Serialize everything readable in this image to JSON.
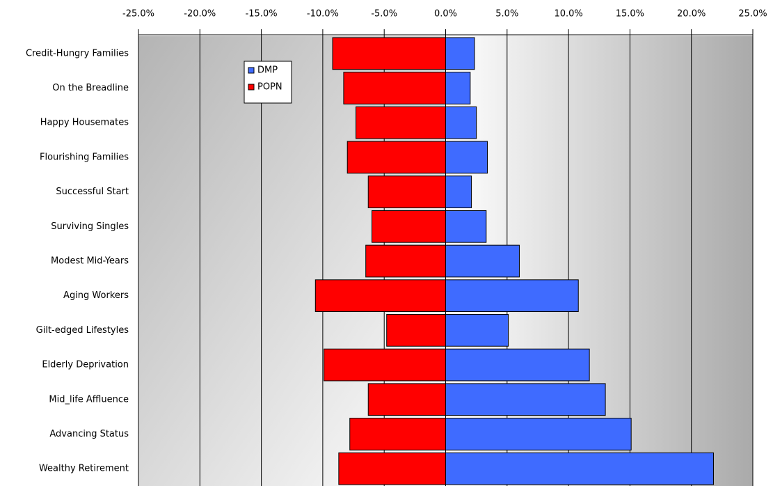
{
  "chart_data": {
    "type": "bar",
    "orientation": "horizontal",
    "barmode": "overlay",
    "categories": [
      "Credit-Hungry Families",
      "On the Breadline",
      "Happy Housemates",
      "Flourishing Families",
      "Successful Start",
      "Surviving Singles",
      "Modest Mid-Years",
      "Aging Workers",
      "Gilt-edged Lifestyles",
      "Elderly Deprivation",
      "Mid_life Affluence",
      "Advancing Status",
      "Wealthy Retirement"
    ],
    "series": [
      {
        "name": "DMP",
        "color": "#3f6bff",
        "values": [
          2.35,
          2.0,
          2.5,
          3.4,
          2.1,
          3.3,
          6.0,
          10.8,
          5.1,
          11.7,
          13.0,
          15.1,
          21.8
        ]
      },
      {
        "name": "POPN",
        "color": "#ff0000",
        "values": [
          -9.2,
          -8.3,
          -7.3,
          -8.0,
          -6.3,
          -6.0,
          -6.5,
          -10.6,
          -4.8,
          -9.9,
          -6.3,
          -7.8,
          -8.7
        ]
      }
    ],
    "xlim": [
      -25,
      25
    ],
    "xticks": [
      {
        "value": -25,
        "label": "-25.0%"
      },
      {
        "value": -20,
        "label": "-20.0%"
      },
      {
        "value": -15,
        "label": "-15.0%"
      },
      {
        "value": -10,
        "label": "-10.0%"
      },
      {
        "value": -5,
        "label": "-5.0%"
      },
      {
        "value": 0,
        "label": "0.0%"
      },
      {
        "value": 5,
        "label": "5.0%"
      },
      {
        "value": 10,
        "label": "10.0%"
      },
      {
        "value": 15,
        "label": "15.0%"
      },
      {
        "value": 20,
        "label": "20.0%"
      },
      {
        "value": 25,
        "label": "25.0%"
      }
    ],
    "grid": true,
    "legend": "top-left"
  }
}
